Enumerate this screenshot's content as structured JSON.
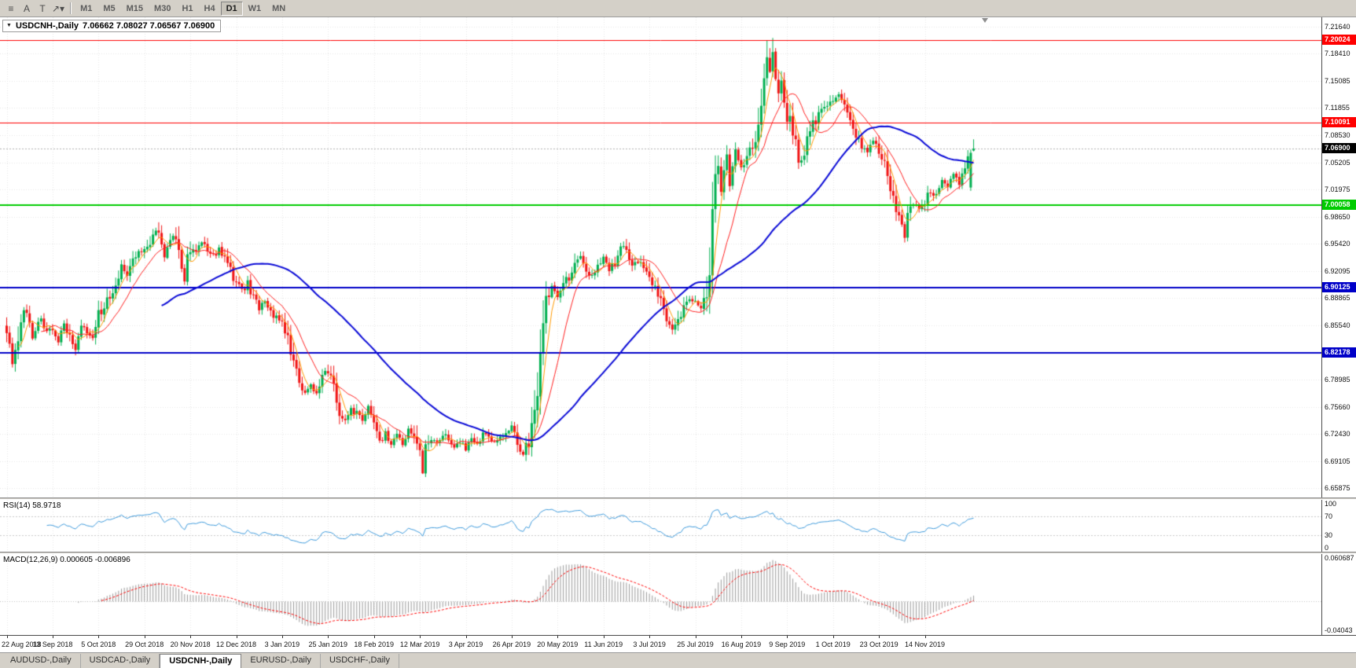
{
  "toolbar": {
    "icons": [
      {
        "name": "chart-menu",
        "glyph": "≡"
      },
      {
        "name": "pointer-a",
        "glyph": "A"
      },
      {
        "name": "text-cursor",
        "glyph": "T"
      },
      {
        "name": "draw-tools",
        "glyph": "↗▾"
      }
    ],
    "timeframes": [
      "M1",
      "M5",
      "M15",
      "M30",
      "H1",
      "H4",
      "D1",
      "W1",
      "MN"
    ],
    "active_timeframe": "D1"
  },
  "chart": {
    "collapse_icon": "▼",
    "title": "USDCNH-,Daily",
    "ohlc": "7.06662 7.08027 7.06567 7.06900"
  },
  "price_axis": {
    "ticks": [
      "7.21640",
      "7.18410",
      "7.15085",
      "7.11855",
      "7.08530",
      "7.05205",
      "7.01975",
      "6.98650",
      "6.95420",
      "6.92095",
      "6.88865",
      "6.85540",
      "6.82310",
      "6.78985",
      "6.75660",
      "6.72430",
      "6.69105",
      "6.65875"
    ],
    "tags": [
      {
        "label": "7.20024",
        "value": 7.20024,
        "bg": "#ff0000",
        "fg": "#ffffff"
      },
      {
        "label": "7.10091",
        "value": 7.10091,
        "bg": "#ff0000",
        "fg": "#ffffff"
      },
      {
        "label": "7.06900",
        "value": 7.069,
        "bg": "#000000",
        "fg": "#ffffff"
      },
      {
        "label": "7.00058",
        "value": 7.00058,
        "bg": "#00cc00",
        "fg": "#ffffff"
      },
      {
        "label": "6.90125",
        "value": 6.90125,
        "bg": "#0000c8",
        "fg": "#ffffff"
      },
      {
        "label": "6.82178",
        "value": 6.82178,
        "bg": "#0000c8",
        "fg": "#ffffff"
      }
    ]
  },
  "levels": [
    {
      "value": 7.20024,
      "color": "#ff0000",
      "width": 1
    },
    {
      "value": 7.10091,
      "color": "#ff0000",
      "width": 1
    },
    {
      "value": 7.00058,
      "color": "#00cc00",
      "width": 2
    },
    {
      "value": 6.90125,
      "color": "#0000c8",
      "width": 2
    },
    {
      "value": 6.82178,
      "color": "#0000c8",
      "width": 2
    }
  ],
  "current_price": {
    "value": 7.069,
    "line_color": "#b0b0b0"
  },
  "rsi": {
    "label": "RSI(14) 58.9718",
    "period": 14,
    "value": 58.9718,
    "axis": [
      "100",
      "70",
      "30",
      "0"
    ],
    "guide_levels": [
      70,
      30
    ],
    "line_color": "#3e9adb"
  },
  "macd": {
    "label": "MACD(12,26,9) 0.000605 -0.006896",
    "params": [
      12,
      26,
      9
    ],
    "macd_value": 0.000605,
    "signal_value": -0.006896,
    "axis": [
      "0.060687",
      "-0.04043"
    ],
    "ylim": [
      -0.04043,
      0.060687
    ],
    "histogram_color": "#9a9a9a",
    "signal_color": "#ff0000"
  },
  "time_axis": {
    "bars_per_label": 16,
    "dates": [
      "22 Aug 2018",
      "13 Sep 2018",
      "5 Oct 2018",
      "29 Oct 2018",
      "20 Nov 2018",
      "12 Dec 2018",
      "3 Jan 2019",
      "25 Jan 2019",
      "18 Feb 2019",
      "12 Mar 2019",
      "3 Apr 2019",
      "26 Apr 2019",
      "20 May 2019",
      "11 Jun 2019",
      "3 Jul 2019",
      "25 Jul 2019",
      "16 Aug 2019",
      "9 Sep 2019",
      "1 Oct 2019",
      "23 Oct 2019",
      "14 Nov 2019"
    ]
  },
  "tabs": [
    {
      "label": "AUDUSD-,Daily",
      "active": false
    },
    {
      "label": "USDCAD-,Daily",
      "active": false
    },
    {
      "label": "USDCNH-,Daily",
      "active": true
    },
    {
      "label": "EURUSD-,Daily",
      "active": false
    },
    {
      "label": "USDCHF-,Daily",
      "active": false
    }
  ],
  "chart_data": {
    "type": "candlestick",
    "symbol": "USDCNH-",
    "period": "Daily",
    "bar_count": 338,
    "bar_step": 3.65,
    "plot_left": 8,
    "up_color": "#00b050",
    "down_color": "#f01414",
    "ylim": [
      6.65875,
      7.2164
    ],
    "moving_averages": [
      {
        "period": 5,
        "color": "#ff9900",
        "width": 1
      },
      {
        "period": 13,
        "color": "#ff2020",
        "width": 1
      },
      {
        "period": 55,
        "color": "#0b0bd6",
        "width": 2
      }
    ],
    "price_path": [
      [
        0,
        6.851
      ],
      [
        2,
        6.806
      ],
      [
        4,
        6.842
      ],
      [
        6,
        6.878
      ],
      [
        9,
        6.843
      ],
      [
        12,
        6.866
      ],
      [
        14,
        6.845
      ],
      [
        16,
        6.852
      ],
      [
        18,
        6.838
      ],
      [
        20,
        6.856
      ],
      [
        22,
        6.843
      ],
      [
        24,
        6.828
      ],
      [
        26,
        6.856
      ],
      [
        28,
        6.85
      ],
      [
        30,
        6.842
      ],
      [
        32,
        6.868
      ],
      [
        34,
        6.873
      ],
      [
        36,
        6.894
      ],
      [
        38,
        6.906
      ],
      [
        40,
        6.926
      ],
      [
        42,
        6.917
      ],
      [
        44,
        6.936
      ],
      [
        46,
        6.944
      ],
      [
        48,
        6.945
      ],
      [
        50,
        6.958
      ],
      [
        52,
        6.973
      ],
      [
        54,
        6.958
      ],
      [
        55,
        6.94
      ],
      [
        56,
        6.953
      ],
      [
        58,
        6.963
      ],
      [
        60,
        6.946
      ],
      [
        62,
        6.906
      ],
      [
        63,
        6.938
      ],
      [
        66,
        6.949
      ],
      [
        68,
        6.958
      ],
      [
        70,
        6.949
      ],
      [
        72,
        6.939
      ],
      [
        74,
        6.947
      ],
      [
        76,
        6.936
      ],
      [
        78,
        6.921
      ],
      [
        80,
        6.906
      ],
      [
        82,
        6.897
      ],
      [
        84,
        6.906
      ],
      [
        86,
        6.889
      ],
      [
        88,
        6.875
      ],
      [
        90,
        6.883
      ],
      [
        92,
        6.871
      ],
      [
        94,
        6.863
      ],
      [
        96,
        6.857
      ],
      [
        98,
        6.843
      ],
      [
        100,
        6.806
      ],
      [
        102,
        6.789
      ],
      [
        104,
        6.773
      ],
      [
        106,
        6.783
      ],
      [
        108,
        6.771
      ],
      [
        110,
        6.793
      ],
      [
        112,
        6.801
      ],
      [
        114,
        6.779
      ],
      [
        116,
        6.746
      ],
      [
        118,
        6.739
      ],
      [
        120,
        6.753
      ],
      [
        122,
        6.749
      ],
      [
        124,
        6.739
      ],
      [
        126,
        6.759
      ],
      [
        128,
        6.743
      ],
      [
        130,
        6.713
      ],
      [
        132,
        6.727
      ],
      [
        134,
        6.709
      ],
      [
        136,
        6.723
      ],
      [
        138,
        6.713
      ],
      [
        140,
        6.731
      ],
      [
        142,
        6.723
      ],
      [
        144,
        6.701
      ],
      [
        145,
        6.679
      ],
      [
        146,
        6.707
      ],
      [
        148,
        6.717
      ],
      [
        150,
        6.713
      ],
      [
        152,
        6.723
      ],
      [
        154,
        6.718
      ],
      [
        156,
        6.709
      ],
      [
        158,
        6.713
      ],
      [
        160,
        6.707
      ],
      [
        162,
        6.717
      ],
      [
        164,
        6.713
      ],
      [
        166,
        6.723
      ],
      [
        168,
        6.719
      ],
      [
        170,
        6.713
      ],
      [
        172,
        6.719
      ],
      [
        174,
        6.723
      ],
      [
        176,
        6.731
      ],
      [
        178,
        6.713
      ],
      [
        180,
        6.699
      ],
      [
        182,
        6.717
      ],
      [
        184,
        6.749
      ],
      [
        185,
        6.779
      ],
      [
        186,
        6.823
      ],
      [
        187,
        6.861
      ],
      [
        188,
        6.887
      ],
      [
        190,
        6.903
      ],
      [
        192,
        6.889
      ],
      [
        194,
        6.911
      ],
      [
        196,
        6.909
      ],
      [
        198,
        6.927
      ],
      [
        200,
        6.939
      ],
      [
        202,
        6.923
      ],
      [
        204,
        6.913
      ],
      [
        206,
        6.929
      ],
      [
        208,
        6.935
      ],
      [
        210,
        6.923
      ],
      [
        212,
        6.933
      ],
      [
        214,
        6.953
      ],
      [
        216,
        6.943
      ],
      [
        218,
        6.927
      ],
      [
        220,
        6.933
      ],
      [
        222,
        6.923
      ],
      [
        224,
        6.909
      ],
      [
        226,
        6.899
      ],
      [
        228,
        6.883
      ],
      [
        230,
        6.857
      ],
      [
        232,
        6.849
      ],
      [
        234,
        6.863
      ],
      [
        236,
        6.879
      ],
      [
        238,
        6.886
      ],
      [
        240,
        6.883
      ],
      [
        242,
        6.877
      ],
      [
        244,
        6.898
      ],
      [
        245,
        6.931
      ],
      [
        246,
        6.986
      ],
      [
        247,
        7.031
      ],
      [
        248,
        7.056
      ],
      [
        249,
        7.021
      ],
      [
        250,
        7.046
      ],
      [
        251,
        7.061
      ],
      [
        252,
        7.019
      ],
      [
        253,
        7.051
      ],
      [
        254,
        7.063
      ],
      [
        256,
        7.046
      ],
      [
        258,
        7.059
      ],
      [
        260,
        7.073
      ],
      [
        262,
        7.093
      ],
      [
        263,
        7.121
      ],
      [
        264,
        7.156
      ],
      [
        265,
        7.176
      ],
      [
        266,
        7.161
      ],
      [
        267,
        7.179
      ],
      [
        268,
        7.153
      ],
      [
        269,
        7.133
      ],
      [
        270,
        7.149
      ],
      [
        271,
        7.126
      ],
      [
        272,
        7.109
      ],
      [
        274,
        7.093
      ],
      [
        276,
        7.053
      ],
      [
        278,
        7.063
      ],
      [
        280,
        7.093
      ],
      [
        282,
        7.103
      ],
      [
        284,
        7.113
      ],
      [
        286,
        7.123
      ],
      [
        288,
        7.129
      ],
      [
        290,
        7.136
      ],
      [
        292,
        7.119
      ],
      [
        294,
        7.099
      ],
      [
        296,
        7.083
      ],
      [
        298,
        7.073
      ],
      [
        300,
        7.063
      ],
      [
        302,
        7.079
      ],
      [
        304,
        7.066
      ],
      [
        306,
        7.049
      ],
      [
        308,
        7.023
      ],
      [
        310,
        6.999
      ],
      [
        312,
        6.979
      ],
      [
        313,
        6.963
      ],
      [
        314,
        6.986
      ],
      [
        316,
        7.003
      ],
      [
        318,
        6.993
      ],
      [
        320,
        7.006
      ],
      [
        322,
        7.019
      ],
      [
        324,
        7.013
      ],
      [
        326,
        7.029
      ],
      [
        328,
        7.023
      ],
      [
        330,
        7.036
      ],
      [
        332,
        7.029
      ],
      [
        334,
        7.043
      ],
      [
        335,
        7.056
      ],
      [
        337,
        7.069
      ]
    ],
    "last_bars": [
      [
        7.022,
        7.068,
        7.018,
        7.064
      ],
      [
        7.06662,
        7.08027,
        7.06567,
        7.069
      ]
    ]
  }
}
